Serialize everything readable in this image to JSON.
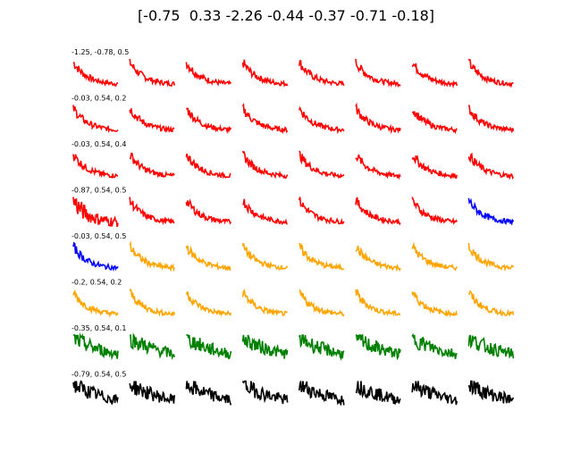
{
  "title": "[-0.75  0.33 -2.26 -0.44 -0.37 -0.71 -0.18]",
  "chart_data": {
    "type": "line",
    "layout": "small-multiples grid, 8 rows x 8 columns",
    "title": "[-0.75  0.33 -2.26 -0.44 -0.37 -0.71 -0.18]",
    "axes": "off",
    "row_colors": [
      "#ff0000",
      "#ff0000",
      "#ff0000",
      "#ff0000",
      "#0000ff",
      "#ffa500",
      "#008000",
      "#000000"
    ],
    "row_first_labels": [
      "-1.25, -0.78, 0.5",
      "-0.03, 0.54, 0.2",
      "-0.03, 0.54, 0.4",
      "-0.87, 0.54, 0.5",
      "-0.03, 0.54, 0.5",
      "-0.2, 0.54, 0.2",
      "-0.35, 0.54, 0.1",
      "-0.79, 0.54, 0.5"
    ],
    "series_shape": "noisy decaying signal, ~60 samples, values 0..1 relative"
  }
}
